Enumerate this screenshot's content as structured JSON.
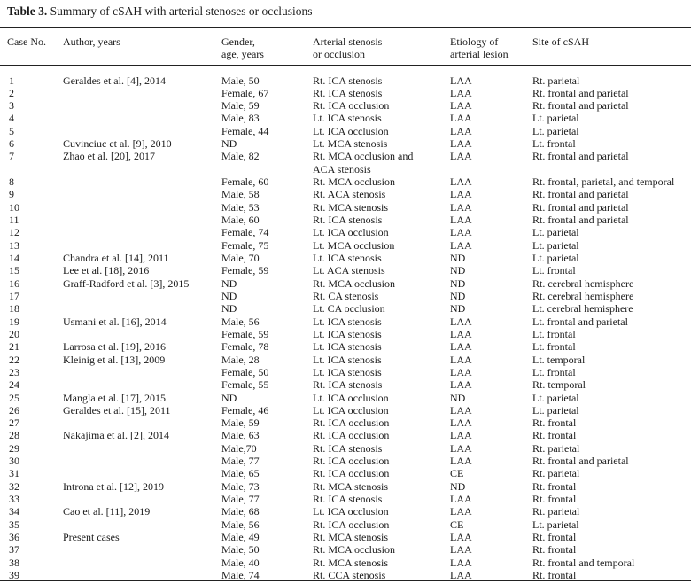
{
  "caption": {
    "label": "Table 3.",
    "text": "Summary of cSAH with arterial stenoses or occlusions"
  },
  "headers": {
    "case": "Case No.",
    "author": "Author, years",
    "gender_1": "Gender,",
    "gender_2": "age, years",
    "stenosis_1": "Arterial stenosis",
    "stenosis_2": "or occlusion",
    "etiology_1": "Etiology of",
    "etiology_2": "arterial lesion",
    "site": "Site of cSAH"
  },
  "rows": [
    {
      "no": "1",
      "author": "Geraldes et al. [4], 2014",
      "gender": "Male, 50",
      "lesion": "Rt. ICA stenosis",
      "etiology": "LAA",
      "site": "Rt. parietal"
    },
    {
      "no": "2",
      "author": "",
      "gender": "Female, 67",
      "lesion": "Rt. ICA stenosis",
      "etiology": "LAA",
      "site": "Rt. frontal and parietal"
    },
    {
      "no": "3",
      "author": "",
      "gender": "Male, 59",
      "lesion": "Rt. ICA occlusion",
      "etiology": "LAA",
      "site": "Rt. frontal and parietal"
    },
    {
      "no": "4",
      "author": "",
      "gender": "Male, 83",
      "lesion": "Lt. ICA stenosis",
      "etiology": "LAA",
      "site": "Lt. parietal"
    },
    {
      "no": "5",
      "author": "",
      "gender": "Female, 44",
      "lesion": "Lt. ICA occlusion",
      "etiology": "LAA",
      "site": "Lt. parietal"
    },
    {
      "no": "6",
      "author": "Cuvinciuc et al. [9], 2010",
      "gender": "ND",
      "lesion": "Lt. MCA stenosis",
      "etiology": "LAA",
      "site": "Lt. frontal"
    },
    {
      "no": "7",
      "author": "Zhao et al. [20], 2017",
      "gender": "Male, 82",
      "lesion": "Rt. MCA occlusion and",
      "lesion2": "ACA stenosis",
      "etiology": "LAA",
      "site": "Rt. frontal and parietal"
    },
    {
      "no": "8",
      "author": "",
      "gender": "Female, 60",
      "lesion": "Rt. MCA occlusion",
      "etiology": "LAA",
      "site": "Rt. frontal, parietal, and temporal"
    },
    {
      "no": "9",
      "author": "",
      "gender": "Male, 58",
      "lesion": "Rt. ACA stenosis",
      "etiology": "LAA",
      "site": "Rt. frontal and parietal"
    },
    {
      "no": "10",
      "author": "",
      "gender": "Male, 53",
      "lesion": "Rt. MCA stenosis",
      "etiology": "LAA",
      "site": "Rt. frontal and parietal"
    },
    {
      "no": "11",
      "author": "",
      "gender": "Male, 60",
      "lesion": "Rt. ICA stenosis",
      "etiology": "LAA",
      "site": "Rt. frontal and parietal"
    },
    {
      "no": "12",
      "author": "",
      "gender": "Female, 74",
      "lesion": "Lt. ICA occlusion",
      "etiology": "LAA",
      "site": "Lt. parietal"
    },
    {
      "no": "13",
      "author": "",
      "gender": "Female, 75",
      "lesion": "Lt. MCA occlusion",
      "etiology": "LAA",
      "site": "Lt. parietal"
    },
    {
      "no": "14",
      "author": "Chandra et al. [14], 2011",
      "gender": "Male, 70",
      "lesion": "Lt. ICA stenosis",
      "etiology": "ND",
      "site": "Lt. parietal"
    },
    {
      "no": "15",
      "author": "Lee et al. [18], 2016",
      "gender": "Female, 59",
      "lesion": "Lt. ACA stenosis",
      "etiology": "ND",
      "site": "Lt. frontal"
    },
    {
      "no": "16",
      "author": "Graff-Radford et al. [3], 2015",
      "gender": "ND",
      "lesion": "Rt. MCA occlusion",
      "etiology": "ND",
      "site": "Rt. cerebral hemisphere"
    },
    {
      "no": "17",
      "author": "",
      "gender": "ND",
      "lesion": "Rt. CA stenosis",
      "etiology": "ND",
      "site": "Rt. cerebral hemisphere"
    },
    {
      "no": "18",
      "author": "",
      "gender": "ND",
      "lesion": "Lt. CA occlusion",
      "etiology": "ND",
      "site": "Lt. cerebral hemisphere"
    },
    {
      "no": "19",
      "author": "Usmani et al. [16], 2014",
      "gender": "Male, 56",
      "lesion": "Lt. ICA stenosis",
      "etiology": "LAA",
      "site": "Lt. frontal and parietal"
    },
    {
      "no": "20",
      "author": "",
      "gender": "Female, 59",
      "lesion": "Lt. ICA stenosis",
      "etiology": "LAA",
      "site": "Lt. frontal"
    },
    {
      "no": "21",
      "author": "Larrosa et al. [19], 2016",
      "gender": "Female, 78",
      "lesion": "Lt. ICA stenosis",
      "etiology": "LAA",
      "site": "Lt. frontal"
    },
    {
      "no": "22",
      "author": "Kleinig et al. [13], 2009",
      "gender": "Male, 28",
      "lesion": "Lt. ICA stenosis",
      "etiology": "LAA",
      "site": "Lt. temporal"
    },
    {
      "no": "23",
      "author": "",
      "gender": "Female, 50",
      "lesion": "Lt. ICA stenosis",
      "etiology": "LAA",
      "site": "Lt. frontal"
    },
    {
      "no": "24",
      "author": "",
      "gender": "Female, 55",
      "lesion": "Rt. ICA stenosis",
      "etiology": "LAA",
      "site": "Rt. temporal"
    },
    {
      "no": "25",
      "author": "Mangla et al. [17], 2015",
      "gender": "ND",
      "lesion": "Lt. ICA occlusion",
      "etiology": "ND",
      "site": "Lt. parietal"
    },
    {
      "no": "26",
      "author": "Geraldes et al. [15], 2011",
      "gender": "Female, 46",
      "lesion": "Lt. ICA occlusion",
      "etiology": "LAA",
      "site": "Lt. parietal"
    },
    {
      "no": "27",
      "author": "",
      "gender": "Male, 59",
      "lesion": "Rt. ICA occlusion",
      "etiology": "LAA",
      "site": "Rt. frontal"
    },
    {
      "no": "28",
      "author": "Nakajima et al. [2], 2014",
      "gender": "Male, 63",
      "lesion": "Rt. ICA occlusion",
      "etiology": "LAA",
      "site": "Rt. frontal"
    },
    {
      "no": "29",
      "author": "",
      "gender": "Male,70",
      "lesion": "Rt. ICA stenosis",
      "etiology": "LAA",
      "site": "Rt. parietal"
    },
    {
      "no": "30",
      "author": "",
      "gender": "Male, 77",
      "lesion": "Rt. ICA occlusion",
      "etiology": "LAA",
      "site": "Rt. frontal and parietal"
    },
    {
      "no": "31",
      "author": "",
      "gender": "Male, 65",
      "lesion": "Rt. ICA occlusion",
      "etiology": "CE",
      "site": "Rt. parietal"
    },
    {
      "no": "32",
      "author": "Introna et al. [12], 2019",
      "gender": "Male, 73",
      "lesion": "Rt. MCA stenosis",
      "etiology": "ND",
      "site": "Rt. frontal"
    },
    {
      "no": "33",
      "author": "",
      "gender": "Male, 77",
      "lesion": "Rt. ICA stenosis",
      "etiology": "LAA",
      "site": "Rt. frontal"
    },
    {
      "no": "34",
      "author": "Cao et al. [11], 2019",
      "gender": "Male, 68",
      "lesion": "Lt. ICA occlusion",
      "etiology": "LAA",
      "site": "Rt. parietal"
    },
    {
      "no": "35",
      "author": "",
      "gender": "Male, 56",
      "lesion": "Rt. ICA occlusion",
      "etiology": "CE",
      "site": "Lt. parietal"
    },
    {
      "no": "36",
      "author": "Present cases",
      "gender": "Male, 49",
      "lesion": "Rt. MCA stenosis",
      "etiology": "LAA",
      "site": "Rt. frontal"
    },
    {
      "no": "37",
      "author": "",
      "gender": "Male, 50",
      "lesion": "Rt. MCA occlusion",
      "etiology": "LAA",
      "site": "Rt. frontal"
    },
    {
      "no": "38",
      "author": "",
      "gender": "Male, 40",
      "lesion": "Rt. MCA stenosis",
      "etiology": "LAA",
      "site": "Rt. frontal and temporal"
    },
    {
      "no": "39",
      "author": "",
      "gender": "Male, 74",
      "lesion": "Rt. CCA stenosis",
      "etiology": "LAA",
      "site": "Rt. frontal"
    }
  ]
}
